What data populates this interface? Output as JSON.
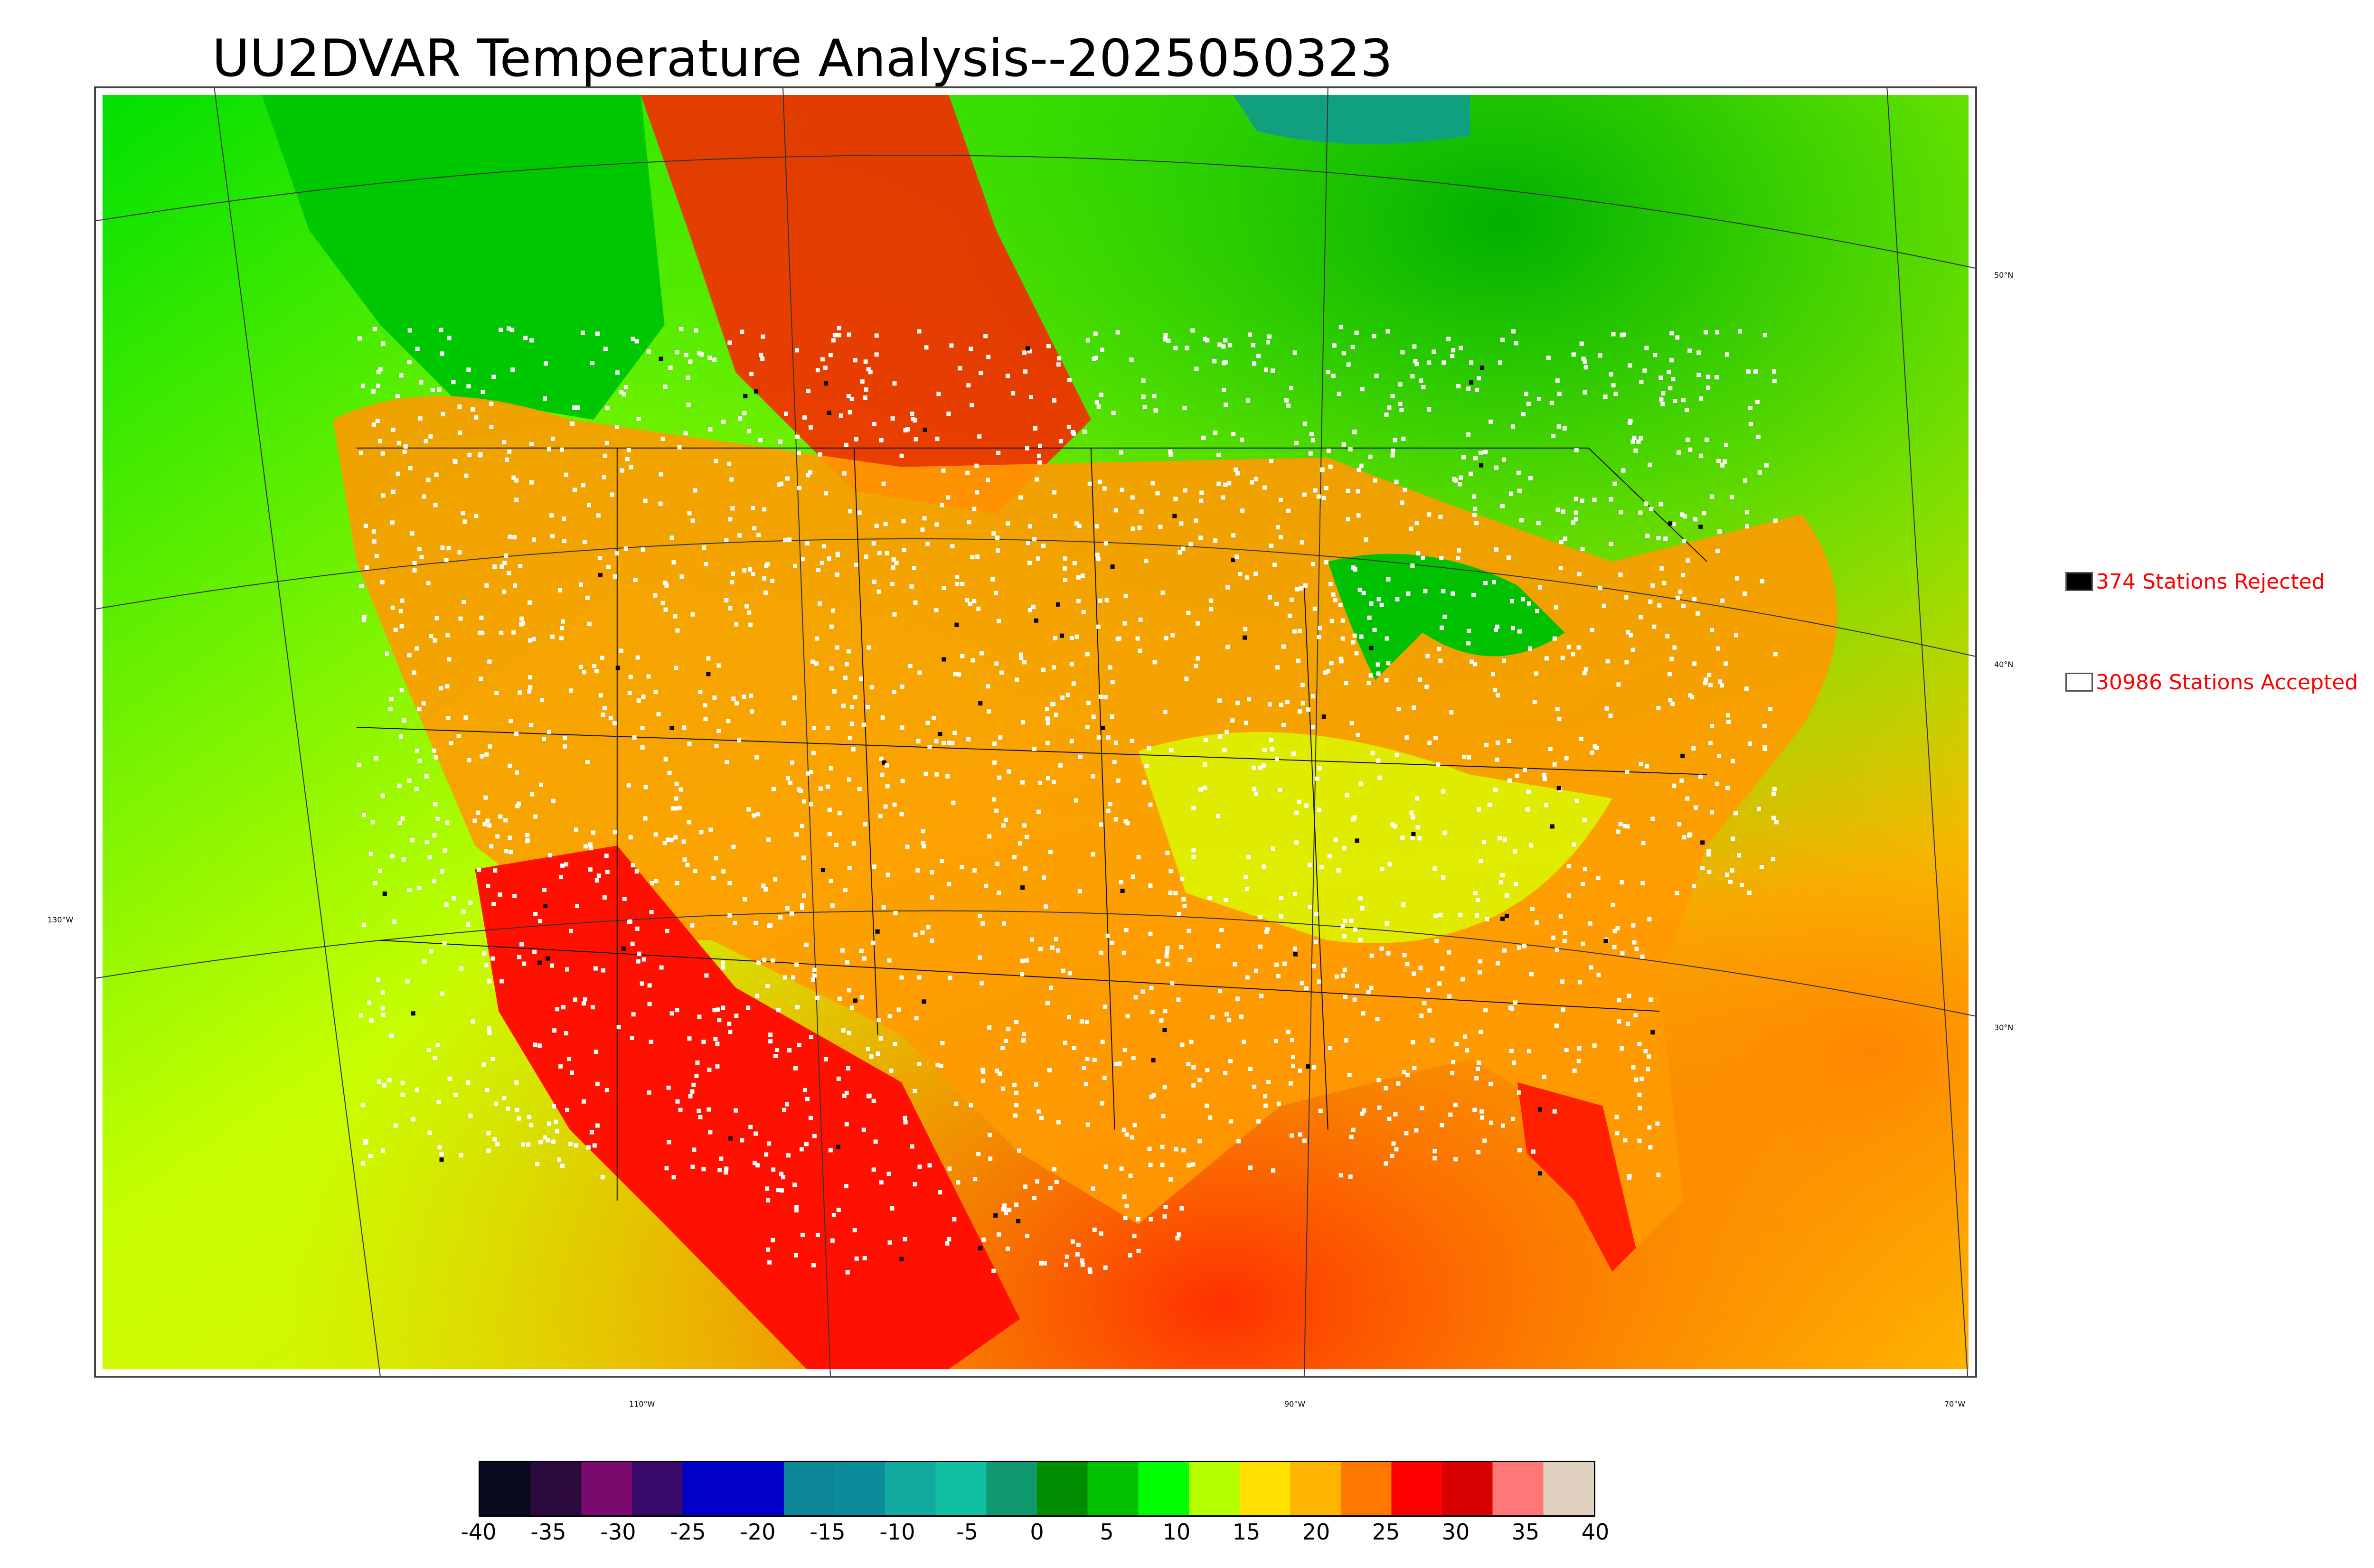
{
  "title": "UU2DVAR Temperature Analysis--2025050323",
  "legend": {
    "rejected": {
      "label": "374 Stations Rejected",
      "color": "#000000"
    },
    "accepted": {
      "label": "30986 Stations Accepted",
      "color": "#ffffff"
    }
  },
  "graticule": {
    "lat_labels": [
      "50°N",
      "40°N",
      "30°N"
    ],
    "lon_labels": [
      "130°W",
      "110°W",
      "90°W",
      "70°W"
    ]
  },
  "colorbar": {
    "ticks": [
      "-40",
      "-35",
      "-30",
      "-25",
      "-20",
      "-15",
      "-10",
      "-5",
      "0",
      "5",
      "10",
      "15",
      "20",
      "25",
      "30",
      "35",
      "40"
    ],
    "range": [
      -40,
      40
    ],
    "colors": [
      "#0a0a1e",
      "#2a0a3c",
      "#7a0a6e",
      "#3a0a6a",
      "#0000c8",
      "#0000c8",
      "#0a8696",
      "#0a8c9a",
      "#10aaa0",
      "#10c0a0",
      "#109870",
      "#008c00",
      "#00c000",
      "#00ff00",
      "#b4ff00",
      "#ffe000",
      "#ffb400",
      "#ff7800",
      "#ff0000",
      "#d80000",
      "#ff7878",
      "#e0d0c0"
    ]
  },
  "colors": {
    "cold": "#00ff00",
    "mild": "#ffe600",
    "warm": "#ffa000",
    "hot": "#ff0000"
  }
}
